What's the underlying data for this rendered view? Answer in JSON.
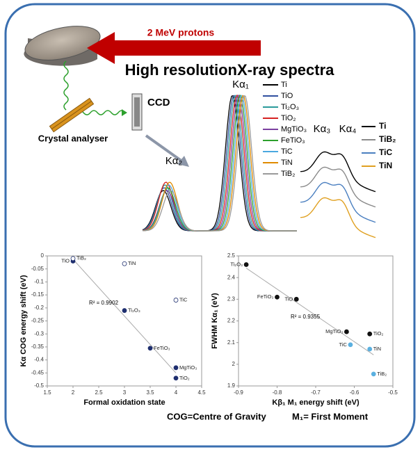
{
  "diagram": {
    "proton_label": "2 MeV protons",
    "title": "High resolutionX-ray spectra",
    "detector": "CCD",
    "crystal": "Crystal analyser",
    "peaks": [
      "Kα₁",
      "Kα₂",
      "Kα₃",
      "Kα₄"
    ],
    "legend_main": [
      {
        "name": "Ti",
        "color": "#000000"
      },
      {
        "name": "TiO",
        "color": "#2f4f9f"
      },
      {
        "name": "Ti₂O₃",
        "color": "#2a9a9a"
      },
      {
        "name": "TiO₂",
        "color": "#d62020"
      },
      {
        "name": "MgTiO₃",
        "color": "#7b3fa0"
      },
      {
        "name": "FeTiO₃",
        "color": "#2ca02c"
      },
      {
        "name": "TiC",
        "color": "#4aa8e0"
      },
      {
        "name": "TiN",
        "color": "#e08a00"
      },
      {
        "name": "TiB₂",
        "color": "#9a9a9a"
      }
    ],
    "legend_inset": [
      {
        "name": "Ti",
        "color": "#000000"
      },
      {
        "name": "TiB₂",
        "color": "#8a8a8a"
      },
      {
        "name": "TiC",
        "color": "#4a7fc0"
      },
      {
        "name": "TiN",
        "color": "#e0a020"
      }
    ],
    "footer": [
      "COG=Centre of Gravity",
      "M₁= First Moment"
    ]
  },
  "chart_data": [
    {
      "type": "scatter",
      "x_label": "Formal oxidation state",
      "y_label": "Kα COG energy shift (eV)",
      "annotation": "R² = 0.9902",
      "xlim": [
        1.5,
        4.5
      ],
      "xticks": [
        1.5,
        2,
        2.5,
        3,
        3.5,
        4,
        4.5
      ],
      "ylim": [
        -0.5,
        0
      ],
      "yticks": [
        0,
        -0.05,
        -0.1,
        -0.15,
        -0.2,
        -0.25,
        -0.3,
        -0.35,
        -0.4,
        -0.45,
        -0.5
      ],
      "points": [
        {
          "label": "TiO",
          "x": 2,
          "y": -0.02,
          "color": "#1f2f6f",
          "filled": true
        },
        {
          "label": "TiB₂",
          "x": 2,
          "y": -0.01,
          "color": "#1f2f6f",
          "filled": false
        },
        {
          "label": "TiN",
          "x": 3,
          "y": -0.03,
          "color": "#1f2f6f",
          "filled": false
        },
        {
          "label": "TiC",
          "x": 4,
          "y": -0.17,
          "color": "#1f2f6f",
          "filled": false
        },
        {
          "label": "Ti₂O₃",
          "x": 3,
          "y": -0.21,
          "color": "#1f2f6f",
          "filled": true
        },
        {
          "label": "FeTiO₃",
          "x": 3.5,
          "y": -0.355,
          "color": "#1f2f6f",
          "filled": true
        },
        {
          "label": "MgTiO₃",
          "x": 4,
          "y": -0.43,
          "color": "#1f2f6f",
          "filled": true
        },
        {
          "label": "TiO₂",
          "x": 4,
          "y": -0.47,
          "color": "#1f2f6f",
          "filled": true
        }
      ]
    },
    {
      "type": "scatter",
      "x_label": "Kβ₁ M₁ energy shift (eV)",
      "y_label": "FWHM Kα₁ (eV)",
      "annotation": "R² = 0.9355",
      "xlim": [
        -0.9,
        -0.5
      ],
      "xticks": [
        -0.9,
        -0.8,
        -0.7,
        -0.6,
        -0.5
      ],
      "ylim": [
        1.9,
        2.5
      ],
      "yticks": [
        1.9,
        2,
        2.1,
        2.2,
        2.3,
        2.4,
        2.5
      ],
      "points": [
        {
          "label": "Ti₂O₃",
          "x": -0.88,
          "y": 2.46,
          "color": "#111111",
          "filled": true
        },
        {
          "label": "FeTiO₃",
          "x": -0.8,
          "y": 2.31,
          "color": "#111111",
          "filled": true
        },
        {
          "label": "TiO",
          "x": -0.75,
          "y": 2.3,
          "color": "#111111",
          "filled": true
        },
        {
          "label": "MgTiO₃",
          "x": -0.62,
          "y": 2.15,
          "color": "#111111",
          "filled": true
        },
        {
          "label": "TiO₂",
          "x": -0.56,
          "y": 2.14,
          "color": "#111111",
          "filled": true
        },
        {
          "label": "TiC",
          "x": -0.61,
          "y": 2.09,
          "color": "#5ab0e0",
          "filled": true
        },
        {
          "label": "TiN",
          "x": -0.56,
          "y": 2.07,
          "color": "#5ab0e0",
          "filled": true
        },
        {
          "label": "TiB₂",
          "x": -0.55,
          "y": 1.955,
          "color": "#5ab0e0",
          "filled": true
        }
      ]
    }
  ]
}
